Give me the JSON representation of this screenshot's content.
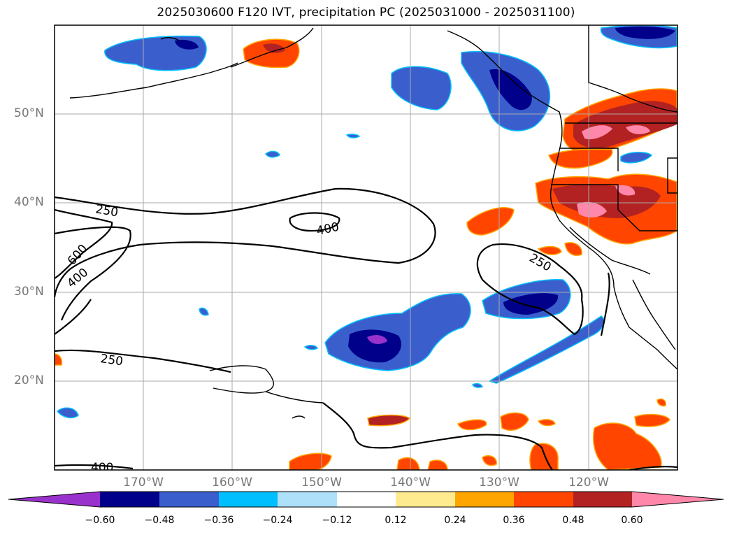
{
  "title": "2025030600 F120 IVT, precipitation PC (2025031000 - 2025031100)",
  "map": {
    "lat_labels": [
      "50°N",
      "40°N",
      "30°N",
      "20°N"
    ],
    "lon_labels": [
      "170°W",
      "160°W",
      "150°W",
      "140°W",
      "130°W",
      "120°W"
    ],
    "ivt_contour_labels": [
      "250",
      "400",
      "600",
      "400",
      "250",
      "250",
      "400"
    ]
  },
  "colorbar": {
    "ticks": [
      "−0.60",
      "−0.48",
      "−0.36",
      "−0.24",
      "−0.12",
      "0.12",
      "0.24",
      "0.36",
      "0.48",
      "0.60"
    ],
    "colors": [
      "#9932cc",
      "#00008b",
      "#3a5fcd",
      "#00bfff",
      "#aee1f9",
      "#ffffff",
      "#ffeb8f",
      "#ffa500",
      "#ff4500",
      "#b22222",
      "#ff88aa"
    ]
  }
}
